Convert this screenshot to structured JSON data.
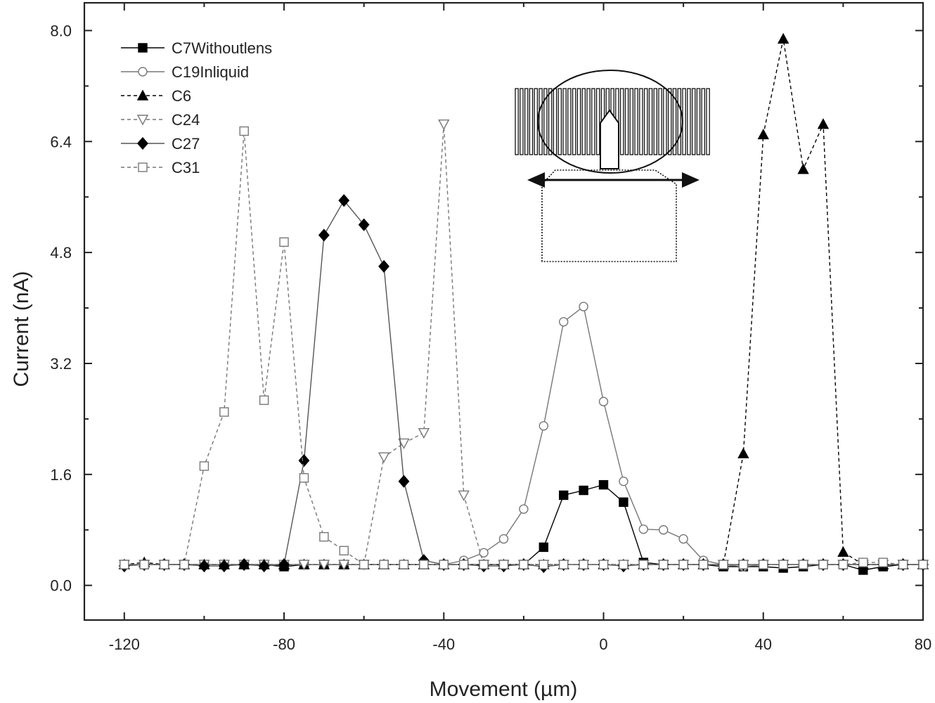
{
  "chart_data": {
    "type": "line",
    "xlabel": "Movement (µm)",
    "ylabel": "Current (nA)",
    "xlim": [
      -130,
      80
    ],
    "ylim": [
      -0.5,
      8.4
    ],
    "xticks": [
      -120,
      -80,
      -40,
      0,
      40,
      80
    ],
    "xtick_labels": [
      "-120",
      "-80",
      "-40",
      "0",
      "40",
      "80"
    ],
    "yticks": [
      0,
      1.6,
      3.2,
      4.8,
      6.4,
      8.0
    ],
    "ytick_labels": [
      "0.0",
      "1.6",
      "3.2",
      "4.8",
      "6.4",
      "8.0"
    ],
    "legend_position": "top-left",
    "grid": false,
    "series": [
      {
        "name": "C7Withoutlens",
        "marker": "filled-square",
        "line": "solid",
        "color": "#000000",
        "x": [
          -120,
          -115,
          -110,
          -105,
          -100,
          -95,
          -90,
          -85,
          -80,
          -75,
          -70,
          -65,
          -60,
          -55,
          -50,
          -45,
          -40,
          -35,
          -30,
          -25,
          -20,
          -15,
          -10,
          -5,
          0,
          5,
          10,
          15,
          20,
          25,
          30,
          35,
          40,
          45,
          50,
          55,
          60,
          65,
          70,
          75,
          80
        ],
        "y": [
          0.3,
          0.3,
          0.3,
          0.3,
          0.3,
          0.3,
          0.3,
          0.3,
          0.27,
          0.3,
          0.3,
          0.3,
          0.3,
          0.3,
          0.3,
          0.3,
          0.3,
          0.3,
          0.3,
          0.3,
          0.3,
          0.55,
          1.3,
          1.37,
          1.45,
          1.2,
          0.33,
          0.3,
          0.3,
          0.3,
          0.27,
          0.27,
          0.27,
          0.25,
          0.27,
          0.3,
          0.3,
          0.22,
          0.27,
          0.3,
          0.3
        ]
      },
      {
        "name": "C19Inliquid",
        "marker": "open-circle",
        "line": "solid",
        "color": "#777777",
        "x": [
          -120,
          -115,
          -110,
          -105,
          -100,
          -95,
          -90,
          -85,
          -80,
          -75,
          -70,
          -65,
          -60,
          -55,
          -50,
          -45,
          -40,
          -35,
          -30,
          -25,
          -20,
          -15,
          -10,
          -5,
          0,
          5,
          10,
          15,
          20,
          25,
          30,
          35,
          40,
          45,
          50,
          55,
          60,
          65,
          70,
          75,
          80
        ],
        "y": [
          0.3,
          0.3,
          0.3,
          0.3,
          0.3,
          0.3,
          0.3,
          0.3,
          0.3,
          0.3,
          0.3,
          0.3,
          0.3,
          0.3,
          0.3,
          0.3,
          0.3,
          0.36,
          0.47,
          0.67,
          1.1,
          2.3,
          3.8,
          4.02,
          2.65,
          1.5,
          0.81,
          0.8,
          0.67,
          0.36,
          0.3,
          0.27,
          0.3,
          0.3,
          0.3,
          0.3,
          0.3,
          0.3,
          0.3,
          0.3,
          0.3
        ]
      },
      {
        "name": "C6",
        "marker": "filled-triangle-up",
        "line": "dashed",
        "color": "#000000",
        "x": [
          -120,
          -115,
          -110,
          -105,
          -100,
          -95,
          -90,
          -85,
          -80,
          -75,
          -70,
          -65,
          -60,
          -55,
          -50,
          -45,
          -40,
          -35,
          -30,
          -25,
          -20,
          -15,
          -10,
          -5,
          0,
          5,
          10,
          15,
          20,
          25,
          30,
          35,
          40,
          45,
          50,
          55,
          60,
          65,
          70,
          75,
          80
        ],
        "y": [
          0.3,
          0.33,
          0.3,
          0.3,
          0.3,
          0.3,
          0.3,
          0.3,
          0.3,
          0.3,
          0.3,
          0.3,
          0.3,
          0.3,
          0.3,
          0.3,
          0.3,
          0.3,
          0.3,
          0.3,
          0.3,
          0.3,
          0.3,
          0.3,
          0.3,
          0.3,
          0.3,
          0.3,
          0.3,
          0.3,
          0.3,
          1.9,
          6.5,
          7.88,
          6.0,
          6.65,
          0.48,
          0.3,
          0.3,
          0.3,
          0.3
        ]
      },
      {
        "name": "C24",
        "marker": "open-triangle-down",
        "line": "dashed",
        "color": "#777777",
        "x": [
          -120,
          -115,
          -110,
          -105,
          -100,
          -95,
          -90,
          -85,
          -80,
          -75,
          -70,
          -65,
          -60,
          -55,
          -50,
          -45,
          -40,
          -35,
          -30,
          -25,
          -20,
          -15,
          -10,
          -5,
          0,
          5,
          10,
          15,
          20,
          25,
          30,
          35,
          40,
          45,
          50,
          55,
          60,
          65,
          70,
          75,
          80
        ],
        "y": [
          0.3,
          0.3,
          0.3,
          0.3,
          0.3,
          0.3,
          0.3,
          0.3,
          0.3,
          0.3,
          0.3,
          0.3,
          0.3,
          1.85,
          2.05,
          2.2,
          6.65,
          1.3,
          0.3,
          0.3,
          0.3,
          0.3,
          0.3,
          0.3,
          0.3,
          0.3,
          0.3,
          0.3,
          0.3,
          0.3,
          0.3,
          0.3,
          0.3,
          0.3,
          0.3,
          0.3,
          0.3,
          0.3,
          0.3,
          0.3,
          0.3
        ]
      },
      {
        "name": "C27",
        "marker": "filled-diamond",
        "line": "solid",
        "color": "#555555",
        "x": [
          -120,
          -115,
          -110,
          -105,
          -100,
          -95,
          -90,
          -85,
          -80,
          -75,
          -70,
          -65,
          -60,
          -55,
          -50,
          -45,
          -40,
          -35,
          -30,
          -25,
          -20,
          -15,
          -10,
          -5,
          0,
          5,
          10,
          15,
          20,
          25,
          30,
          35,
          40,
          45,
          50,
          55,
          60,
          65,
          70,
          75,
          80
        ],
        "y": [
          0.28,
          0.3,
          0.3,
          0.3,
          0.28,
          0.28,
          0.3,
          0.28,
          0.3,
          1.8,
          5.05,
          5.55,
          5.2,
          4.6,
          1.5,
          0.36,
          0.3,
          0.3,
          0.28,
          0.28,
          0.3,
          0.27,
          0.3,
          0.3,
          0.3,
          0.28,
          0.3,
          0.3,
          0.3,
          0.3,
          0.3,
          0.3,
          0.3,
          0.3,
          0.3,
          0.3,
          0.3,
          0.3,
          0.3,
          0.3,
          0.3
        ]
      },
      {
        "name": "C31",
        "marker": "open-square",
        "line": "dashed",
        "color": "#777777",
        "x": [
          -120,
          -115,
          -110,
          -105,
          -100,
          -95,
          -90,
          -85,
          -80,
          -75,
          -70,
          -65,
          -60,
          -55,
          -50,
          -45,
          -40,
          -35,
          -30,
          -25,
          -20,
          -15,
          -10,
          -5,
          0,
          5,
          10,
          15,
          20,
          25,
          30,
          35,
          40,
          45,
          50,
          55,
          60,
          65,
          70,
          75,
          80
        ],
        "y": [
          0.3,
          0.3,
          0.3,
          0.3,
          1.72,
          2.5,
          6.55,
          2.67,
          4.95,
          1.55,
          0.7,
          0.5,
          0.3,
          0.3,
          0.3,
          0.3,
          0.3,
          0.3,
          0.3,
          0.3,
          0.3,
          0.3,
          0.3,
          0.3,
          0.3,
          0.3,
          0.3,
          0.3,
          0.3,
          0.3,
          0.3,
          0.3,
          0.3,
          0.3,
          0.3,
          0.3,
          0.3,
          0.33,
          0.33,
          0.3,
          0.3
        ]
      }
    ]
  }
}
